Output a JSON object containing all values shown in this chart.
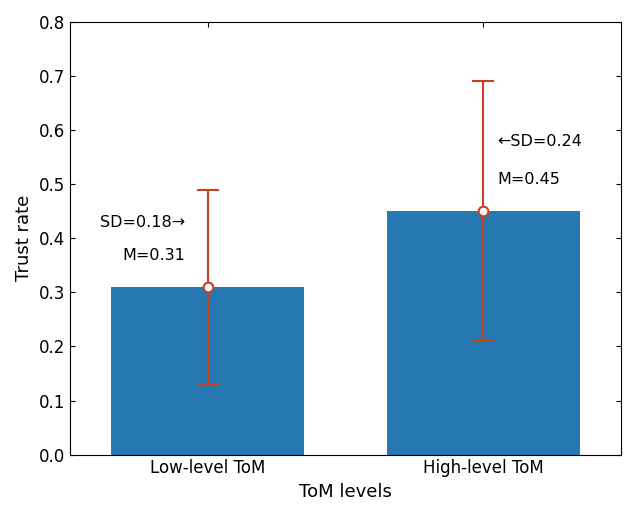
{
  "categories": [
    "Low-level ToM",
    "High-level ToM"
  ],
  "means": [
    0.31,
    0.45
  ],
  "sds": [
    0.18,
    0.24
  ],
  "bar_color": "#2678b2",
  "error_color": "#c84020",
  "xlabel": "ToM levels",
  "ylabel": "Trust rate",
  "ylim": [
    0,
    0.8
  ],
  "yticks": [
    0.0,
    0.1,
    0.2,
    0.3,
    0.4,
    0.5,
    0.6,
    0.7,
    0.8
  ],
  "bar_width": 0.35,
  "bar_positions": [
    0.25,
    0.75
  ],
  "xlim": [
    0,
    1
  ],
  "figsize": [
    6.36,
    5.16
  ],
  "dpi": 100,
  "ann0_sd_text": "SD=0.18→",
  "ann0_m_text": "M=0.31",
  "ann1_sd_text": "←SD=0.24",
  "ann1_m_text": "M=0.45"
}
